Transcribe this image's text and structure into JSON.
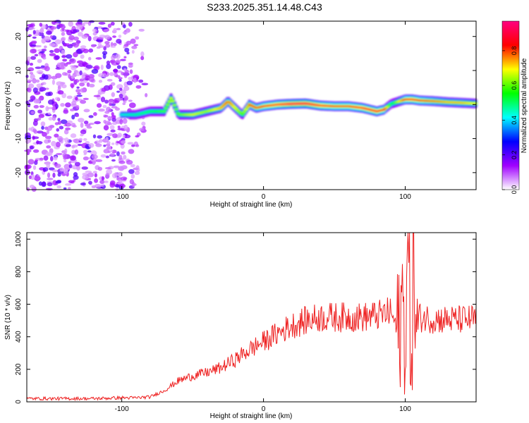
{
  "title": "S233.2025.351.14.48.C43",
  "chart_data": [
    {
      "type": "heatmap",
      "xlabel": "Height of straight line (km)",
      "ylabel": "Frequency (Hz)",
      "xlim": [
        -167,
        150
      ],
      "ylim": [
        -25,
        24.5
      ],
      "xticks": [
        -100,
        0,
        100
      ],
      "yticks": [
        -20,
        -10,
        0,
        10,
        20
      ],
      "colorbar": {
        "label": "Normalized spectral amplitude",
        "range": [
          0,
          0.97
        ],
        "ticks": [
          0.0,
          0.2,
          0.4,
          0.6,
          0.8
        ],
        "tick_labels": [
          "0.0",
          "0.2",
          "0.4",
          "0.6",
          "0.8"
        ],
        "colors": [
          "#ffffff",
          "#a000ff",
          "#0000ff",
          "#00ffff",
          "#00ff00",
          "#ffff00",
          "#ff0000",
          "#ff0080"
        ]
      },
      "ridge": {
        "x": [
          -100,
          -90,
          -80,
          -70,
          -65,
          -60,
          -50,
          -40,
          -30,
          -25,
          -20,
          -15,
          -10,
          -5,
          0,
          10,
          20,
          30,
          40,
          50,
          60,
          70,
          80,
          85,
          90,
          100,
          105,
          110,
          120,
          130,
          140,
          150
        ],
        "y": [
          -3,
          -3,
          -2,
          -2,
          2,
          -3,
          -3,
          -2,
          -1,
          1,
          -1,
          -3,
          0,
          -1,
          -0.5,
          0,
          0.2,
          0.3,
          -0.3,
          -0.5,
          -0.5,
          -1,
          -2,
          -1.5,
          0.2,
          1.5,
          1.5,
          1.2,
          1,
          0.7,
          0.5,
          0.3
        ],
        "amplitude": [
          0.45,
          0.5,
          0.55,
          0.6,
          0.7,
          0.6,
          0.7,
          0.65,
          0.75,
          0.8,
          0.7,
          0.6,
          0.8,
          0.8,
          0.85,
          0.9,
          0.95,
          0.95,
          0.9,
          0.85,
          0.85,
          0.9,
          0.9,
          0.85,
          0.5,
          0.85,
          0.9,
          0.85,
          0.8,
          0.75,
          0.75,
          0.7
        ]
      }
    },
    {
      "type": "line",
      "xlabel": "Height of straight line (km)",
      "ylabel": "SNR (10 * v/v)",
      "xlim": [
        -167,
        150
      ],
      "ylim": [
        0,
        1040
      ],
      "xticks": [
        -100,
        0,
        100
      ],
      "yticks": [
        0,
        200,
        400,
        600,
        800,
        1000
      ],
      "series": [
        {
          "name": "SNR",
          "color": "#ee2222",
          "x": [
            -167,
            -140,
            -120,
            -100,
            -90,
            -80,
            -70,
            -60,
            -50,
            -40,
            -30,
            -20,
            -10,
            0,
            10,
            20,
            30,
            40,
            50,
            60,
            70,
            80,
            90,
            95,
            98,
            100,
            102,
            104,
            106,
            108,
            110,
            120,
            130,
            140,
            150
          ],
          "y": [
            20,
            20,
            20,
            25,
            25,
            30,
            70,
            130,
            160,
            180,
            210,
            260,
            320,
            370,
            420,
            470,
            500,
            520,
            520,
            520,
            520,
            530,
            550,
            420,
            600,
            350,
            950,
            200,
            900,
            400,
            520,
            510,
            505,
            505,
            510
          ]
        }
      ]
    }
  ]
}
